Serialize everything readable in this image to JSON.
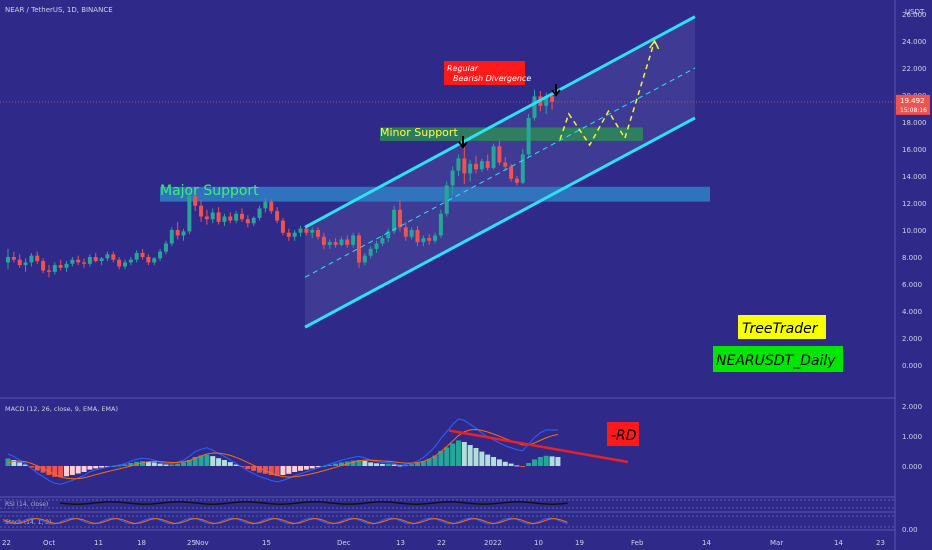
{
  "header": {
    "symbol": "NEAR / TetherUS, 1D, BINANCE",
    "currency": "USDT"
  },
  "price_tag": {
    "value": "19.492",
    "countdown": "15:08:16"
  },
  "annotations": {
    "divergence_line1": "Regular",
    "divergence_line2": "Bearish Divergence",
    "minor_support": "Minor Support",
    "major_support": "Major Support",
    "rd_label": "-RD",
    "author": "TreeTrader",
    "pair": "NEARUSDT_Daily"
  },
  "indicators": {
    "macd_label": "MACD (12, 26, close, 9, EMA, EMA)",
    "rsi_label": "RSI (14, close)",
    "stoch_label": "Stoch (14, 1, 3)"
  },
  "price_axis": [
    "26.000",
    "24.000",
    "22.000",
    "20.000",
    "18.000",
    "16.000",
    "14.000",
    "12.000",
    "10.000",
    "8.000",
    "6.000",
    "4.000",
    "2.000",
    "0.000"
  ],
  "macd_axis": [
    "2.000",
    "1.000",
    "0.000"
  ],
  "stoch_axis": "0.00",
  "time_axis": [
    "22",
    "Oct",
    "11",
    "18",
    "25",
    "Nov",
    "15",
    "Dec",
    "13",
    "22",
    "2022",
    "10",
    "19",
    "Feb",
    "14",
    "Mar",
    "14",
    "23"
  ],
  "colors": {
    "background": "#2f2a8a",
    "up_candle": "#26a69a",
    "down_candle": "#ef5350",
    "channel": "#2de1f5",
    "forecast": "#f5f53a",
    "support_zone": "#2f7fc6",
    "minor_zone": "#2e8b57",
    "macd_line": "#2962ff",
    "signal_line": "#ff6d00",
    "rd_line": "#e8202a",
    "author_bg": "#f7ff00",
    "pair_bg": "#00e600"
  },
  "chart_data": {
    "type": "candlestick",
    "y_axis_range": [
      0,
      26
    ],
    "current_price": 19.492,
    "candles": [
      [
        7.6,
        8.6,
        7.1,
        8.0
      ],
      [
        8.0,
        8.4,
        7.6,
        7.8
      ],
      [
        7.8,
        8.2,
        7.2,
        7.4
      ],
      [
        7.4,
        7.9,
        6.9,
        7.6
      ],
      [
        7.6,
        8.3,
        7.3,
        8.1
      ],
      [
        8.1,
        8.4,
        7.5,
        7.7
      ],
      [
        7.7,
        7.9,
        6.8,
        7.0
      ],
      [
        7.0,
        7.4,
        6.5,
        6.9
      ],
      [
        6.9,
        7.6,
        6.7,
        7.4
      ],
      [
        7.4,
        7.8,
        7.0,
        7.2
      ],
      [
        7.2,
        7.7,
        6.9,
        7.5
      ],
      [
        7.5,
        8.0,
        7.3,
        7.8
      ],
      [
        7.8,
        8.1,
        7.4,
        7.6
      ],
      [
        7.6,
        7.9,
        7.2,
        7.5
      ],
      [
        7.5,
        8.2,
        7.3,
        8.0
      ],
      [
        8.0,
        8.3,
        7.6,
        7.7
      ],
      [
        7.7,
        8.0,
        7.4,
        7.9
      ],
      [
        7.9,
        8.4,
        7.7,
        8.2
      ],
      [
        8.2,
        8.4,
        7.6,
        7.8
      ],
      [
        7.8,
        8.0,
        7.1,
        7.3
      ],
      [
        7.3,
        7.8,
        7.1,
        7.6
      ],
      [
        7.6,
        8.0,
        7.4,
        7.8
      ],
      [
        7.8,
        8.5,
        7.6,
        8.3
      ],
      [
        8.3,
        8.6,
        7.8,
        8.0
      ],
      [
        8.0,
        8.2,
        7.4,
        7.6
      ],
      [
        7.6,
        8.0,
        7.4,
        7.9
      ],
      [
        7.9,
        8.6,
        7.7,
        8.4
      ],
      [
        8.4,
        9.2,
        8.2,
        9.0
      ],
      [
        9.0,
        10.2,
        8.8,
        10.0
      ],
      [
        10.0,
        10.6,
        9.3,
        9.6
      ],
      [
        9.6,
        10.1,
        9.2,
        9.9
      ],
      [
        9.9,
        13.0,
        9.7,
        12.5
      ],
      [
        12.5,
        13.2,
        11.4,
        11.8
      ],
      [
        11.8,
        12.2,
        10.6,
        11.0
      ],
      [
        11.0,
        11.5,
        10.4,
        10.8
      ],
      [
        10.8,
        11.6,
        10.5,
        11.3
      ],
      [
        11.3,
        11.7,
        10.4,
        10.6
      ],
      [
        10.6,
        11.2,
        10.3,
        11.0
      ],
      [
        11.0,
        11.3,
        10.5,
        10.7
      ],
      [
        10.7,
        11.4,
        10.5,
        11.2
      ],
      [
        11.2,
        11.6,
        10.6,
        10.8
      ],
      [
        10.8,
        11.1,
        10.2,
        10.5
      ],
      [
        10.5,
        11.0,
        10.3,
        10.9
      ],
      [
        10.9,
        11.8,
        10.7,
        11.6
      ],
      [
        11.6,
        12.4,
        11.3,
        12.1
      ],
      [
        12.1,
        12.3,
        11.2,
        11.4
      ],
      [
        11.4,
        11.7,
        10.5,
        10.7
      ],
      [
        10.7,
        10.9,
        9.6,
        9.8
      ],
      [
        9.8,
        10.1,
        9.2,
        9.5
      ],
      [
        9.5,
        10.0,
        9.2,
        9.8
      ],
      [
        9.8,
        10.3,
        9.5,
        10.1
      ],
      [
        10.1,
        10.4,
        9.6,
        9.8
      ],
      [
        9.8,
        10.2,
        9.4,
        10.0
      ],
      [
        10.0,
        10.2,
        9.3,
        9.5
      ],
      [
        9.5,
        9.8,
        8.6,
        8.9
      ],
      [
        8.9,
        9.3,
        8.6,
        9.1
      ],
      [
        9.1,
        9.4,
        8.7,
        8.9
      ],
      [
        8.9,
        9.5,
        8.8,
        9.3
      ],
      [
        9.3,
        9.6,
        8.7,
        8.9
      ],
      [
        8.9,
        9.8,
        8.7,
        9.6
      ],
      [
        9.6,
        9.8,
        7.2,
        7.6
      ],
      [
        7.6,
        8.3,
        7.4,
        8.1
      ],
      [
        8.1,
        8.8,
        7.9,
        8.6
      ],
      [
        8.6,
        9.2,
        8.3,
        9.0
      ],
      [
        9.0,
        9.6,
        8.8,
        9.4
      ],
      [
        9.4,
        10.1,
        9.1,
        9.9
      ],
      [
        9.9,
        11.8,
        9.7,
        11.5
      ],
      [
        11.5,
        12.2,
        9.9,
        10.2
      ],
      [
        10.2,
        10.6,
        9.2,
        9.5
      ],
      [
        9.5,
        10.2,
        9.3,
        10.0
      ],
      [
        10.0,
        10.3,
        8.8,
        9.1
      ],
      [
        9.1,
        9.6,
        8.8,
        9.4
      ],
      [
        9.4,
        9.7,
        8.9,
        9.2
      ],
      [
        9.2,
        9.8,
        9.0,
        9.6
      ],
      [
        9.6,
        11.5,
        9.4,
        11.2
      ],
      [
        11.2,
        13.6,
        11.0,
        13.3
      ],
      [
        13.3,
        14.7,
        12.6,
        14.4
      ],
      [
        14.4,
        15.6,
        14.0,
        15.3
      ],
      [
        15.3,
        16.4,
        13.4,
        14.2
      ],
      [
        14.2,
        15.2,
        13.6,
        14.9
      ],
      [
        14.9,
        15.5,
        14.2,
        14.5
      ],
      [
        14.5,
        15.3,
        14.3,
        15.1
      ],
      [
        15.1,
        15.6,
        14.4,
        14.6
      ],
      [
        14.6,
        16.4,
        14.5,
        16.2
      ],
      [
        16.2,
        16.6,
        14.8,
        15.0
      ],
      [
        15.0,
        15.4,
        14.4,
        14.7
      ],
      [
        14.7,
        14.9,
        13.6,
        13.8
      ],
      [
        13.8,
        14.0,
        13.3,
        13.5
      ],
      [
        13.5,
        16.0,
        13.4,
        15.6
      ],
      [
        15.6,
        18.6,
        15.4,
        18.3
      ],
      [
        18.3,
        20.4,
        18.1,
        19.9
      ],
      [
        19.9,
        20.3,
        18.8,
        19.2
      ],
      [
        19.2,
        20.2,
        18.6,
        19.9
      ],
      [
        19.9,
        20.1,
        18.9,
        19.5
      ]
    ],
    "channel": {
      "upper": [
        [
          0,
          10.2
        ],
        [
          94,
          25.8
        ]
      ],
      "lower": [
        [
          0,
          2.8
        ],
        [
          94,
          18.3
        ]
      ],
      "mid": [
        [
          0,
          6.5
        ],
        [
          94,
          22.0
        ]
      ]
    },
    "support_zones": [
      {
        "name": "Major Support",
        "from": 12.1,
        "to": 13.2
      },
      {
        "name": "Minor Support",
        "from": 16.6,
        "to": 17.6
      }
    ],
    "forecast_path": [
      [
        16.5,
        16.7
      ],
      [
        17.3,
        18.6
      ],
      [
        19.2,
        16.3
      ],
      [
        20.9,
        18.8
      ],
      [
        22.4,
        16.8
      ],
      [
        25.1,
        24.0
      ]
    ],
    "macd": {
      "histogram": [
        0.25,
        0.2,
        0.12,
        0.05,
        -0.05,
        -0.15,
        -0.22,
        -0.3,
        -0.36,
        -0.38,
        -0.34,
        -0.3,
        -0.25,
        -0.2,
        -0.12,
        -0.08,
        -0.05,
        -0.02,
        0.0,
        0.02,
        0.05,
        0.1,
        0.14,
        0.16,
        0.15,
        0.12,
        0.08,
        0.05,
        0.05,
        0.08,
        0.12,
        0.2,
        0.3,
        0.35,
        0.38,
        0.33,
        0.26,
        0.2,
        0.13,
        0.05,
        -0.02,
        -0.1,
        -0.16,
        -0.22,
        -0.26,
        -0.3,
        -0.33,
        -0.3,
        -0.26,
        -0.2,
        -0.16,
        -0.12,
        -0.08,
        -0.04,
        0.0,
        0.04,
        0.08,
        0.12,
        0.15,
        0.18,
        0.2,
        0.17,
        0.12,
        0.09,
        0.07,
        0.08,
        0.05,
        0.02,
        0.03,
        0.06,
        0.1,
        0.16,
        0.24,
        0.35,
        0.5,
        0.62,
        0.75,
        0.85,
        0.8,
        0.7,
        0.6,
        0.48,
        0.38,
        0.3,
        0.22,
        0.14,
        0.08,
        0.02,
        -0.02,
        0.1,
        0.22,
        0.3,
        0.34,
        0.32,
        0.3
      ],
      "rd_line": [
        [
          80.5,
          1.05
        ],
        [
          99.5,
          0.18
        ]
      ]
    }
  }
}
